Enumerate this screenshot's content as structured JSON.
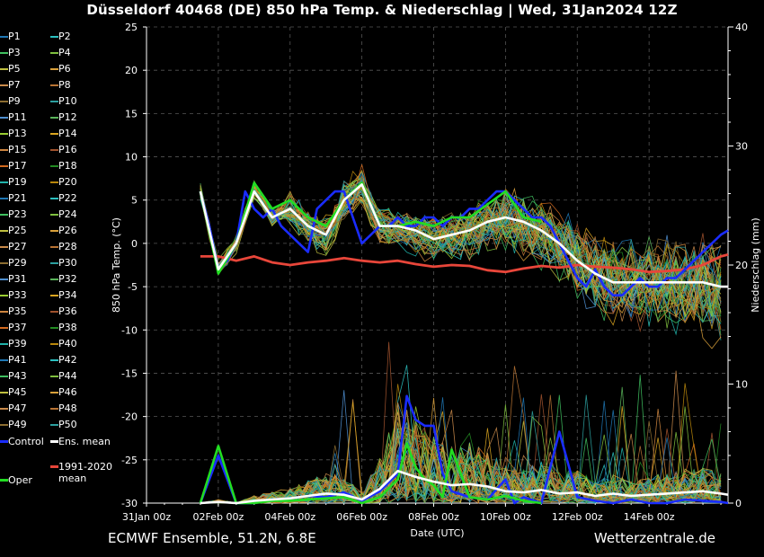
{
  "title": "Düsseldorf 40468 (DE)  850 hPa Temp. & Niederschlag | Wed, 31Jan2024 12Z",
  "footer": {
    "model": "ECMWF Ensemble, 51.2N, 6.8E",
    "site": "Wetterzentrale.de"
  },
  "legend": {
    "members": [
      "P1",
      "P2",
      "P3",
      "P4",
      "P5",
      "P6",
      "P7",
      "P8",
      "P9",
      "P10",
      "P11",
      "P12",
      "P13",
      "P14",
      "P15",
      "P16",
      "P17",
      "P18",
      "P19",
      "P20",
      "P21",
      "P22",
      "P23",
      "P24",
      "P25",
      "P26",
      "P27",
      "P28",
      "P29",
      "P30",
      "P31",
      "P32",
      "P33",
      "P34",
      "P35",
      "P36",
      "P37",
      "P38",
      "P39",
      "P40",
      "P41",
      "P42",
      "P43",
      "P44",
      "P45",
      "P46",
      "P47",
      "P48",
      "P49",
      "P50"
    ],
    "control": "Control",
    "ens_mean": "Ens. mean",
    "clim_line1": "1991-2020",
    "clim_line2": "mean",
    "oper": "Oper"
  },
  "colors": {
    "background": "#000000",
    "grid": "#555555",
    "control": "#1a2cff",
    "ens_mean": "#ffffff",
    "climate": "#e8463a",
    "oper": "#22dd22",
    "member_palette": [
      "#1f77b4",
      "#2bbfbf",
      "#3fbf5f",
      "#7fbf3f",
      "#bfbf3f",
      "#d9a03a",
      "#c98a4a",
      "#b87333",
      "#8c6d31",
      "#2c9f9f",
      "#4f8fd0",
      "#5ab45a",
      "#9acd32",
      "#daa520",
      "#cd853f",
      "#a0522d",
      "#d2691e",
      "#228b22",
      "#20b2aa",
      "#b8860b"
    ]
  },
  "chart_data": {
    "type": "line",
    "xlabel": "Date (UTC)",
    "ylabel_left": "850 hPa Temp. (°C)",
    "ylabel_right": "Niederschlag (mm)",
    "x_ticks": [
      "31Jan 00z",
      "02Feb 00z",
      "04Feb 00z",
      "06Feb 00z",
      "08Feb 00z",
      "10Feb 00z",
      "12Feb 00z",
      "14Feb 00z"
    ],
    "x_range_days": [
      0,
      16.2
    ],
    "y_left_range": [
      -30,
      25
    ],
    "y_left_ticks": [
      25,
      20,
      15,
      10,
      5,
      0,
      -5,
      -10,
      -15,
      -20,
      -25,
      -30
    ],
    "y_right_range": [
      0,
      40
    ],
    "y_right_ticks": [
      40,
      30,
      20,
      10,
      0
    ],
    "grid": true,
    "legend_position": "left",
    "series": [
      {
        "name": "Control",
        "role": "control",
        "x": [
          1.5,
          1.75,
          2.0,
          2.25,
          2.5,
          2.75,
          3.0,
          3.25,
          3.5,
          3.75,
          4.0,
          4.25,
          4.5,
          4.75,
          5.0,
          5.25,
          5.5,
          5.75,
          6.0,
          6.25,
          6.5,
          6.75,
          7.0,
          7.25,
          7.5,
          7.75,
          8.0,
          8.25,
          8.5,
          8.75,
          9.0,
          9.25,
          9.5,
          9.75,
          10.0,
          10.25,
          10.5,
          10.75,
          11.0,
          11.25,
          11.5,
          11.75,
          12.0,
          12.25,
          12.5,
          12.75,
          13.0,
          13.25,
          13.5,
          13.75,
          14.0,
          14.25,
          14.5,
          14.75,
          15.0,
          15.25,
          15.5,
          15.75,
          16.0,
          16.2
        ],
        "y": [
          6,
          2,
          -3,
          -2,
          0,
          6,
          4,
          3,
          4,
          2,
          1,
          0,
          -1,
          4,
          5,
          6,
          6,
          3,
          0,
          1,
          2,
          2,
          3,
          2,
          2,
          3,
          3,
          2,
          3,
          3,
          4,
          4,
          5,
          6,
          6,
          5,
          4,
          3,
          3,
          2,
          0,
          -2,
          -4,
          -5,
          -3,
          -5,
          -6,
          -6,
          -5,
          -4,
          -5,
          -5,
          -4,
          -4,
          -3,
          -2,
          -1,
          0,
          1,
          1.5
        ]
      },
      {
        "name": "Ens. mean",
        "role": "mean",
        "x": [
          1.5,
          2.0,
          2.5,
          3.0,
          3.5,
          4.0,
          4.5,
          5.0,
          5.5,
          6.0,
          6.5,
          7.0,
          7.5,
          8.0,
          8.5,
          9.0,
          9.5,
          10.0,
          10.5,
          11.0,
          11.5,
          12.0,
          12.5,
          13.0,
          13.5,
          14.0,
          14.5,
          15.0,
          15.5,
          16.0,
          16.2
        ],
        "y": [
          6,
          -3,
          0,
          6,
          3,
          4,
          2,
          1,
          5,
          6.8,
          2,
          2,
          1.5,
          0.5,
          1,
          1.5,
          2.5,
          3,
          2.5,
          1.5,
          0,
          -2,
          -3.5,
          -4.5,
          -4.5,
          -4.5,
          -4.5,
          -4.5,
          -4.5,
          -5,
          -5
        ]
      },
      {
        "name": "Oper",
        "role": "oper",
        "x": [
          1.5,
          2.0,
          2.5,
          3.0,
          3.5,
          4.0,
          4.5,
          5.0,
          5.5,
          6.0,
          6.5,
          7.0,
          7.5,
          8.0,
          8.5,
          9.0,
          9.5,
          10.0,
          10.5,
          11.0
        ],
        "y": [
          6,
          -3.5,
          0,
          7,
          4,
          5,
          3,
          2,
          5,
          7,
          2,
          2,
          2.5,
          2,
          3,
          3,
          4.5,
          6,
          3,
          2.5
        ]
      },
      {
        "name": "1991-2020 mean",
        "role": "climate",
        "x": [
          1.5,
          2.0,
          2.5,
          3.0,
          3.5,
          4.0,
          4.5,
          5.0,
          5.5,
          6.0,
          6.5,
          7.0,
          7.5,
          8.0,
          8.5,
          9.0,
          9.5,
          10.0,
          10.5,
          11.0,
          11.5,
          12.0,
          12.5,
          13.0,
          13.5,
          14.0,
          14.5,
          15.0,
          15.5,
          16.0,
          16.2
        ],
        "y": [
          -1.5,
          -1.5,
          -2,
          -1.5,
          -2.2,
          -2.5,
          -2.2,
          -2,
          -1.7,
          -2,
          -2.2,
          -2,
          -2.4,
          -2.7,
          -2.5,
          -2.6,
          -3.1,
          -3.3,
          -2.9,
          -2.6,
          -2.8,
          -2.5,
          -2.7,
          -2.8,
          -3,
          -3.3,
          -3.2,
          -3,
          -2.5,
          -1.5,
          -1.3
        ]
      }
    ],
    "precip_series": [
      {
        "name": "Control",
        "role": "control",
        "x": [
          1.5,
          2.0,
          2.5,
          3.0,
          3.5,
          4.0,
          4.5,
          5.0,
          5.5,
          6.0,
          6.5,
          7.0,
          7.25,
          7.5,
          7.75,
          8.0,
          8.25,
          8.5,
          9.0,
          9.5,
          10.0,
          10.25,
          10.5,
          11.0,
          11.5,
          12.0,
          12.5,
          13.0,
          13.5,
          14.0,
          14.5,
          15.0,
          15.5,
          16.0,
          16.2
        ],
        "y": [
          0,
          4,
          0,
          0,
          0.3,
          0.4,
          0.6,
          0.5,
          0.9,
          0.2,
          1.0,
          2.5,
          9.0,
          7.0,
          6.5,
          6.5,
          2.5,
          1.0,
          0.5,
          0.3,
          2.0,
          0,
          0.5,
          0,
          6.0,
          0.5,
          0.2,
          0,
          0.3,
          0,
          0,
          0.3,
          0.2,
          0.1,
          0
        ]
      },
      {
        "name": "Ens. mean",
        "role": "mean",
        "x": [
          1.5,
          2.0,
          2.5,
          3.0,
          3.5,
          4.0,
          4.5,
          5.0,
          5.5,
          6.0,
          6.5,
          7.0,
          7.5,
          8.0,
          8.5,
          9.0,
          9.5,
          10.0,
          10.5,
          11.0,
          11.5,
          12.0,
          12.5,
          13.0,
          13.5,
          14.0,
          14.5,
          15.0,
          15.5,
          16.0,
          16.2
        ],
        "y": [
          0,
          0.1,
          0,
          0.2,
          0.3,
          0.4,
          0.6,
          0.8,
          0.7,
          0.3,
          1.2,
          2.7,
          2.2,
          1.8,
          1.5,
          1.6,
          1.4,
          1.0,
          0.9,
          1.1,
          0.8,
          0.9,
          0.6,
          0.8,
          0.6,
          0.7,
          0.8,
          0.9,
          1.0,
          0.8,
          0.7
        ]
      },
      {
        "name": "Oper",
        "role": "oper",
        "x": [
          1.5,
          2.0,
          2.5,
          3.0,
          3.5,
          4.0,
          4.5,
          5.0,
          5.5,
          6.0,
          6.5,
          7.0,
          7.25,
          7.5,
          7.75,
          8.0,
          8.25,
          8.5,
          9.0,
          9.5,
          10.0,
          10.5,
          11.0
        ],
        "y": [
          0,
          4.8,
          0,
          0,
          0.2,
          0.2,
          0.3,
          0.4,
          0.5,
          0,
          0.5,
          2.0,
          5.0,
          3.0,
          2.0,
          1.5,
          0.5,
          4.5,
          0.5,
          0.3,
          0.6,
          0.2,
          0
        ]
      }
    ]
  }
}
